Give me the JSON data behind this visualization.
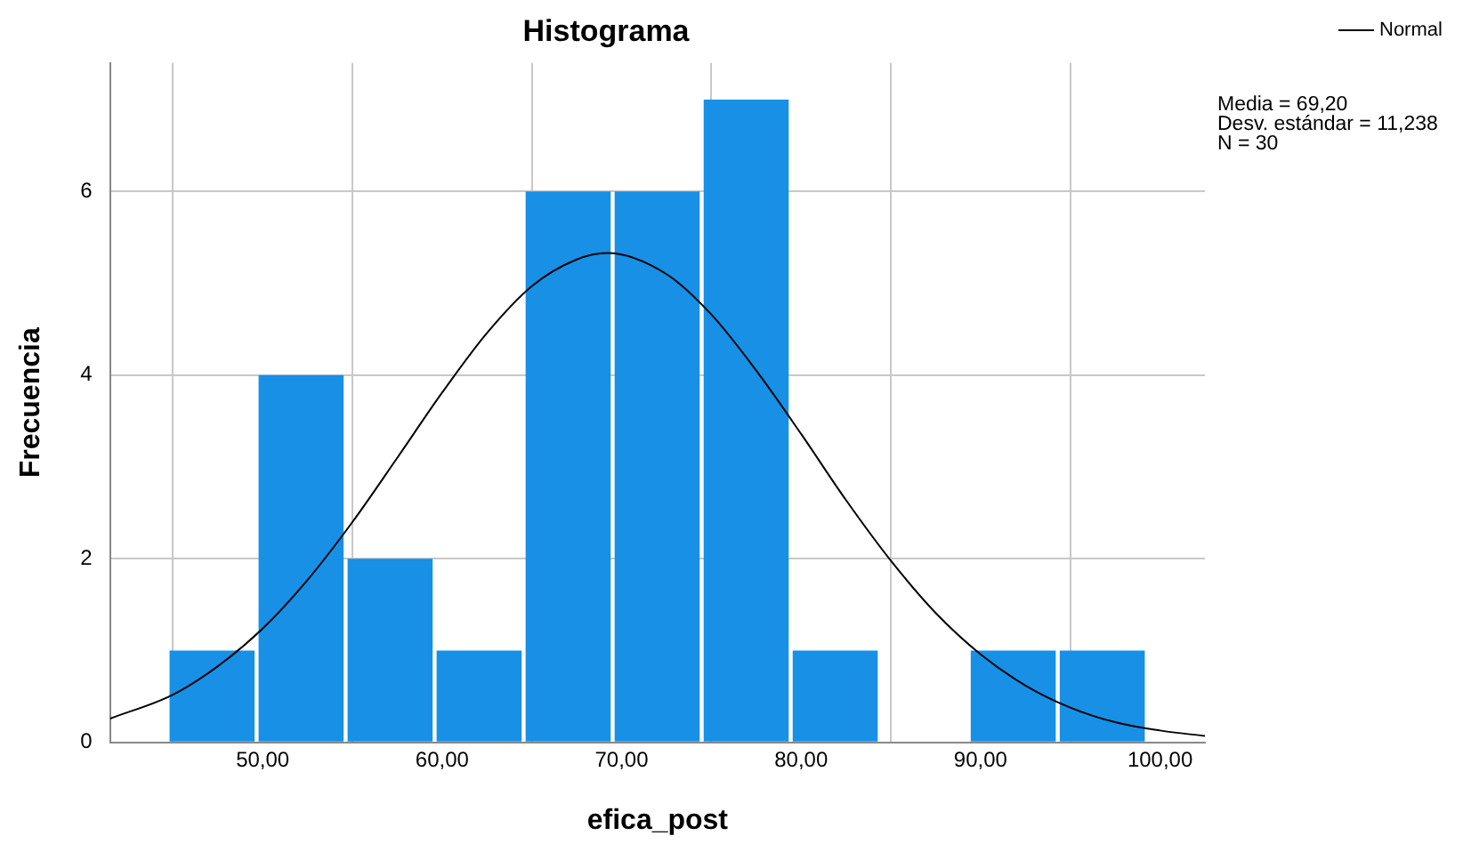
{
  "chart_data": {
    "type": "histogram",
    "title": "Histograma",
    "xlabel": "efica_post",
    "ylabel": "Frecuencia",
    "bins": [
      44.7,
      49.66,
      54.62,
      59.58,
      64.54,
      69.5,
      74.46,
      79.42,
      84.38,
      89.34,
      94.3,
      99.26
    ],
    "values": [
      1,
      4,
      2,
      1,
      6,
      6,
      7,
      1,
      0,
      1,
      1
    ],
    "color": "#1790e6",
    "series": [
      {
        "type": "line",
        "name": "Normal",
        "color": "#000000",
        "x": [
          41.5,
          45,
          47.5,
          50,
          52.5,
          55,
          57.5,
          60,
          62.5,
          65,
          67.5,
          69.2,
          72.5,
          75,
          77.5,
          80,
          82.5,
          85,
          87.5,
          90,
          92.5,
          95,
          97.5,
          100,
          102.5
        ],
        "values": [
          0.26,
          0.52,
          0.83,
          1.24,
          1.77,
          2.4,
          3.1,
          3.81,
          4.46,
          4.97,
          5.26,
          5.33,
          5.1,
          4.66,
          4.05,
          3.36,
          2.64,
          1.98,
          1.41,
          0.96,
          0.62,
          0.38,
          0.22,
          0.13,
          0.07
        ]
      }
    ],
    "marker": "none",
    "line_style": "solid",
    "xlim": [
      41.5,
      102.5
    ],
    "xticks": [
      {
        "value": 50,
        "label": "50,00"
      },
      {
        "value": 60,
        "label": "60,00"
      },
      {
        "value": 70,
        "label": "70,00"
      },
      {
        "value": 80,
        "label": "80,00"
      },
      {
        "value": 90,
        "label": "90,00"
      },
      {
        "value": 100,
        "label": "100,00"
      }
    ],
    "ylim": [
      0,
      7.4
    ],
    "yticks": [
      0,
      2,
      4,
      6
    ],
    "grid": true,
    "legend": "top right",
    "annotations": [
      "Media = 69,20",
      "Desv. estándar = 11,238",
      "N = 30"
    ]
  }
}
